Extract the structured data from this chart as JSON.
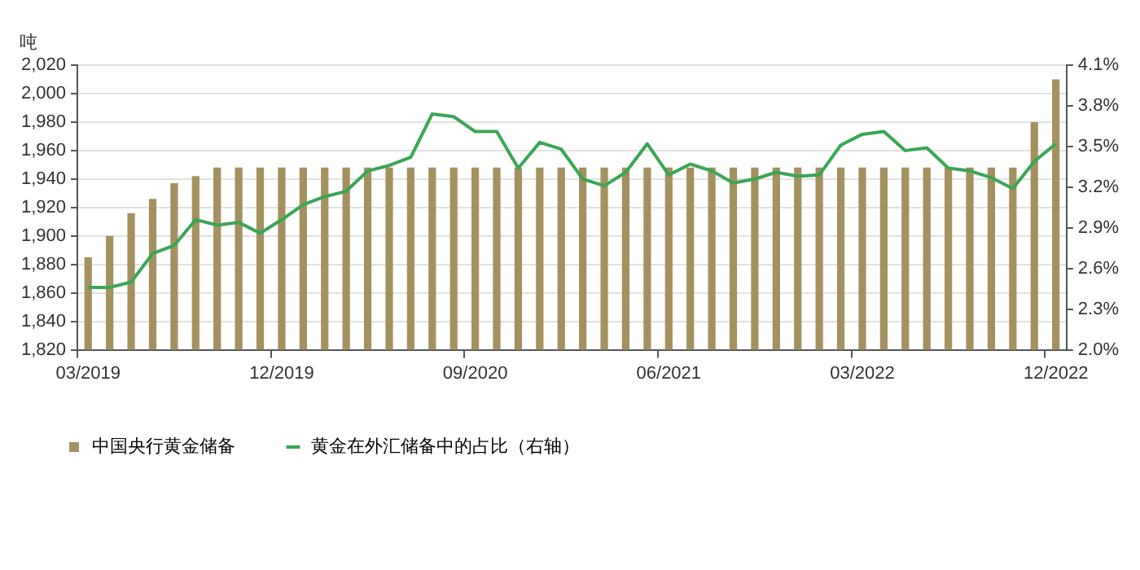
{
  "chart_data": {
    "type": "bar",
    "ylabel": "吨",
    "categories": [
      "03/2019",
      null,
      null,
      null,
      null,
      null,
      null,
      null,
      null,
      "12/2019",
      null,
      null,
      null,
      null,
      null,
      null,
      null,
      null,
      "09/2020",
      null,
      null,
      null,
      null,
      null,
      null,
      null,
      null,
      "06/2021",
      null,
      null,
      null,
      null,
      null,
      null,
      null,
      null,
      "03/2022",
      null,
      null,
      null,
      null,
      null,
      null,
      null,
      null,
      "12/2022"
    ],
    "series": [
      {
        "name": "中国央行黄金储备",
        "color": "#a39260",
        "values": [
          1885,
          1900,
          1916,
          1926,
          1937,
          1942,
          1948,
          1948,
          1948,
          1948,
          1948,
          1948,
          1948,
          1948,
          1948,
          1948,
          1948,
          1948,
          1948,
          1948,
          1948,
          1948,
          1948,
          1948,
          1948,
          1948,
          1948,
          1948,
          1948,
          1948,
          1948,
          1948,
          1948,
          1948,
          1948,
          1948,
          1948,
          1948,
          1948,
          1948,
          1948,
          1948,
          1948,
          1948,
          1980,
          2010
        ]
      },
      {
        "name": "黄金在外汇储备中的占比（右轴）",
        "type": "line",
        "axis": "y2",
        "color": "#3aa655",
        "values": [
          2.46,
          2.46,
          2.5,
          2.71,
          2.77,
          2.96,
          2.92,
          2.94,
          2.86,
          2.96,
          3.07,
          3.13,
          3.17,
          3.32,
          3.36,
          3.42,
          3.74,
          3.72,
          3.61,
          3.61,
          3.34,
          3.53,
          3.48,
          3.26,
          3.21,
          3.31,
          3.52,
          3.29,
          3.37,
          3.32,
          3.23,
          3.26,
          3.31,
          3.28,
          3.29,
          3.51,
          3.59,
          3.61,
          3.47,
          3.49,
          3.34,
          3.32,
          3.27,
          3.19,
          3.39,
          3.52
        ]
      }
    ],
    "ylim": [
      1820,
      2020
    ],
    "yticks": [
      {
        "value": 1820,
        "label": "1,820"
      },
      {
        "value": 1840,
        "label": "1,840"
      },
      {
        "value": 1860,
        "label": "1,860"
      },
      {
        "value": 1880,
        "label": "1,880"
      },
      {
        "value": 1900,
        "label": "1,900"
      },
      {
        "value": 1920,
        "label": "1,920"
      },
      {
        "value": 1940,
        "label": "1,940"
      },
      {
        "value": 1960,
        "label": "1,960"
      },
      {
        "value": 1980,
        "label": "1,980"
      },
      {
        "value": 2000,
        "label": "2,000"
      },
      {
        "value": 2020,
        "label": "2,020"
      }
    ],
    "y2lim": [
      2.0,
      4.1
    ],
    "y2ticks": [
      {
        "value": 2.0,
        "label": "2.0%"
      },
      {
        "value": 2.3,
        "label": "2.3%"
      },
      {
        "value": 2.6,
        "label": "2.6%"
      },
      {
        "value": 2.9,
        "label": "2.9%"
      },
      {
        "value": 3.2,
        "label": "3.2%"
      },
      {
        "value": 3.5,
        "label": "3.5%"
      },
      {
        "value": 3.8,
        "label": "3.8%"
      },
      {
        "value": 4.1,
        "label": "4.1%"
      }
    ],
    "grid": "y",
    "legend": "bottom",
    "marker": "none",
    "line_style": "solid"
  }
}
